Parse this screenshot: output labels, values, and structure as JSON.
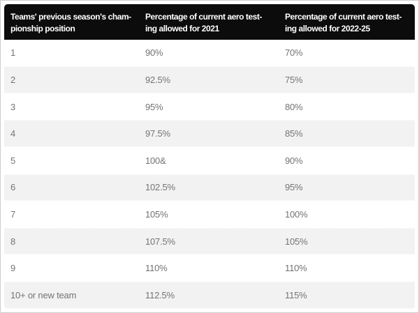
{
  "chart_data": {
    "type": "table",
    "columns": [
      {
        "label": "Teams' previous season's championship position",
        "line1": "Teams' previous season's cham-",
        "line2": "pionship position"
      },
      {
        "label": "Percentage of current aero testing allowed for 2021",
        "line1": "Percentage of current aero test-",
        "line2": "ing allowed for 2021"
      },
      {
        "label": "Percentage of current aero testing allowed for 2022-25",
        "line1": "Percentage of current aero test-",
        "line2": "ing allowed for 2022-25"
      }
    ],
    "rows": [
      [
        "1",
        "90%",
        "70%"
      ],
      [
        "2",
        "92.5%",
        "75%"
      ],
      [
        "3",
        "95%",
        "80%"
      ],
      [
        "4",
        "97.5%",
        "85%"
      ],
      [
        "5",
        "100&",
        "90%"
      ],
      [
        "6",
        "102.5%",
        "95%"
      ],
      [
        "7",
        "105%",
        "100%"
      ],
      [
        "8",
        "107.5%",
        "105%"
      ],
      [
        "9",
        "110%",
        "110%"
      ],
      [
        "10+ or new team",
        "112.5%",
        "115%"
      ]
    ]
  },
  "colors": {
    "header_bg": "#0c0c0c",
    "header_text": "#ffffff",
    "row_bg": "#ffffff",
    "row_alt_bg": "#f2f2f2",
    "cell_text": "#737373",
    "outer_border": "#cccccc"
  }
}
